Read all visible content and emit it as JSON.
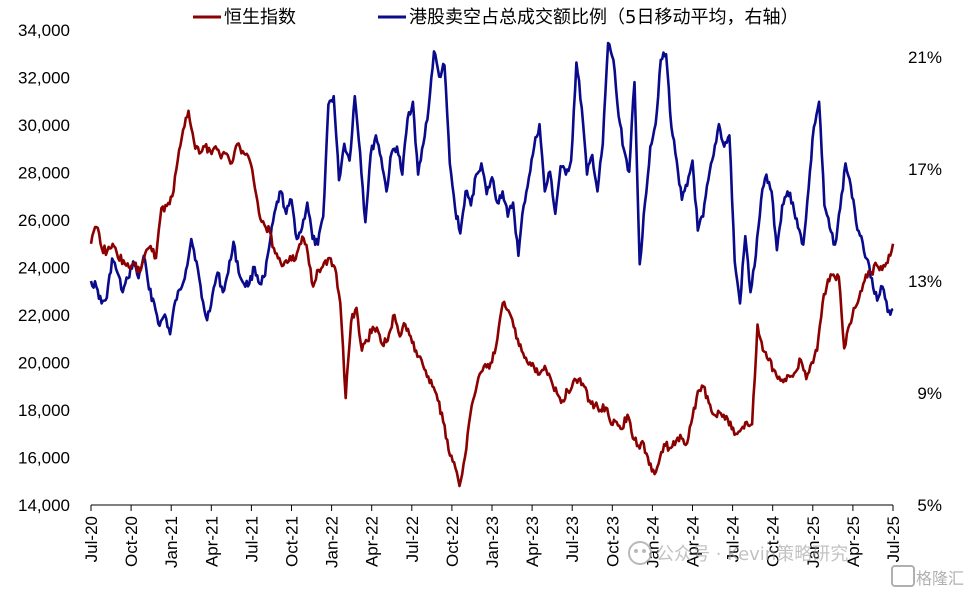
{
  "chart_data": {
    "type": "line",
    "colors": {
      "hsi": "#8b0000",
      "short_ratio": "#0a0a8c"
    },
    "legend": {
      "hsi_label": "恒生指数",
      "short_label": "港股卖空占总成交额比例（5日移动平均，右轴）"
    },
    "x_ticks": [
      "Jul-20",
      "Oct-20",
      "Jan-21",
      "Apr-21",
      "Jul-21",
      "Oct-21",
      "Jan-22",
      "Apr-22",
      "Jul-22",
      "Oct-22",
      "Jan-23",
      "Apr-23",
      "Jul-23",
      "Oct-23",
      "Jan-24",
      "Apr-24",
      "Jul-24",
      "Oct-24",
      "Jan-25",
      "Apr-25",
      "Jul-25"
    ],
    "y_left": {
      "ticks": [
        "14,000",
        "16,000",
        "18,000",
        "20,000",
        "22,000",
        "24,000",
        "26,000",
        "28,000",
        "30,000",
        "32,000",
        "34,000"
      ],
      "range": [
        14000,
        34000
      ]
    },
    "y_right": {
      "ticks": [
        "5%",
        "9%",
        "13%",
        "17%",
        "21%"
      ],
      "range": [
        5,
        22
      ]
    },
    "series": [
      {
        "name": "恒生指数",
        "axis": "left",
        "values": [
          25000,
          25700,
          24800,
          24700,
          25000,
          24400,
          24300,
          24000,
          24200,
          23800,
          24600,
          24900,
          24400,
          26500,
          26600,
          27000,
          28500,
          29800,
          30600,
          29300,
          28800,
          29100,
          28900,
          29100,
          28600,
          28800,
          28400,
          29200,
          28900,
          28700,
          27700,
          26300,
          25800,
          25500,
          24600,
          24200,
          24300,
          24300,
          24600,
          25300,
          24600,
          23200,
          23900,
          24200,
          24400,
          24000,
          22500,
          18500,
          21700,
          22300,
          20500,
          20900,
          21500,
          21300,
          20700,
          21200,
          22000,
          21100,
          21600,
          21100,
          20500,
          20100,
          19400,
          19000,
          18400,
          17500,
          16300,
          15800,
          14800,
          16000,
          17800,
          18800,
          19600,
          19800,
          20000,
          21000,
          22500,
          22200,
          21500,
          20700,
          20200,
          20000,
          19600,
          19600,
          19700,
          19200,
          18700,
          18400,
          18800,
          19200,
          19300,
          19000,
          18400,
          18200,
          18000,
          18100,
          17400,
          17500,
          17200,
          17800,
          16800,
          16500,
          16600,
          15700,
          15300,
          16000,
          16500,
          16400,
          16700,
          16800,
          16600,
          17700,
          18800,
          19000,
          18300,
          17800,
          17900,
          17600,
          17500,
          17000,
          17200,
          17500,
          17400,
          21600,
          20500,
          20100,
          19700,
          19400,
          19300,
          19400,
          19600,
          20100,
          19300,
          20000,
          20500,
          22500,
          23500,
          23700,
          23600,
          20600,
          21600,
          22300,
          23000,
          23700,
          23800,
          24100,
          23900,
          24200,
          25000
        ]
      },
      {
        "name": "港股卖空占总成交额比例",
        "axis": "right",
        "values": [
          13,
          12.8,
          12.2,
          12.4,
          13.8,
          13.3,
          12.6,
          13.1,
          13.7,
          13.1,
          13.9,
          12.7,
          12.2,
          11.4,
          11.8,
          11.1,
          12.3,
          12.7,
          13.4,
          14.5,
          13.7,
          12.4,
          11.6,
          12.5,
          13.3,
          12.6,
          13.3,
          14.4,
          13.3,
          12.9,
          12.9,
          13.5,
          12.9,
          13.2,
          14.5,
          15.6,
          16.2,
          15.4,
          15.9,
          14.5,
          14.9,
          15.8,
          14.5,
          14.3,
          15.3,
          19.3,
          19.6,
          16.6,
          17.9,
          17.3,
          19.6,
          17.6,
          15.1,
          17.5,
          18.2,
          17.4,
          16.2,
          17.6,
          17.8,
          16.8,
          18.8,
          19.4,
          16.8,
          17.9,
          19.2,
          21.2,
          20.3,
          20.7,
          17.2,
          15.6,
          14.7,
          16.2,
          15.7,
          16.8,
          17.2,
          16.1,
          16.7,
          15.8,
          16.2,
          15.3,
          15.8,
          13.9,
          15.7,
          16.7,
          17.8,
          18.6,
          16.2,
          16.9,
          15.4,
          17.1,
          16.8,
          17.3,
          20.8,
          19.2,
          16.8,
          17.5,
          16.2,
          17.9,
          21.5,
          20.9,
          18.9,
          17.7,
          16.9,
          20.1,
          13.6,
          15.8,
          17.8,
          18.6,
          20.9,
          21.1,
          18.5,
          17.3,
          15.9,
          16.4,
          17.3,
          14.8,
          15.3,
          16.6,
          17.5,
          18.6,
          17.8,
          18.2,
          13.7,
          12.2,
          14.6,
          12.6,
          13.9,
          15.9,
          16.8,
          16.2,
          14.1,
          15.7,
          16.2,
          15.8,
          14.9,
          14.3,
          16.3,
          18.5,
          19.4,
          15.7,
          14.9,
          14.3,
          15.6,
          17.2,
          16.4,
          15.1,
          14.6,
          13.8,
          13.1,
          12.3,
          12.8,
          11.9,
          12.0
        ]
      }
    ],
    "watermark": "公众号 · Kevin策略研究",
    "logo_text": "格隆汇"
  }
}
